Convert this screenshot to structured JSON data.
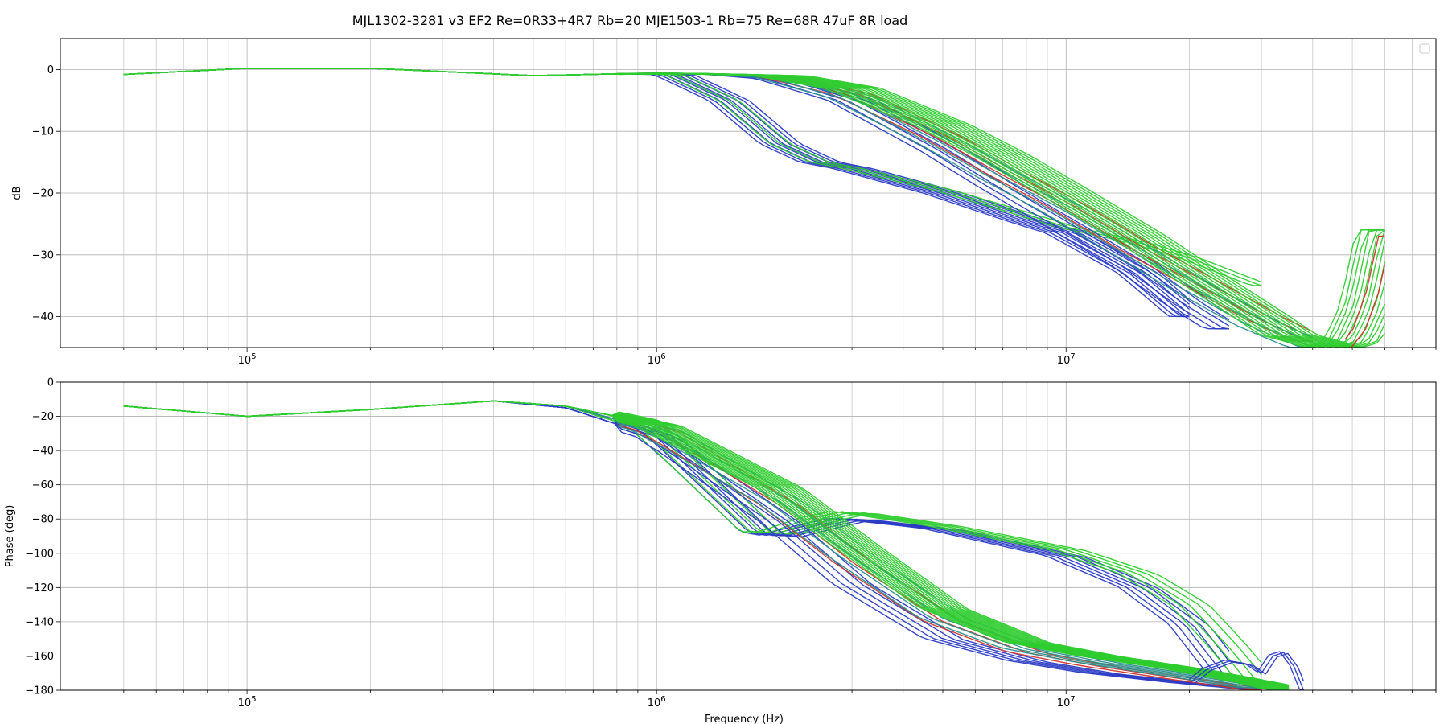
{
  "figure": {
    "title": "MJL1302-3281 v3 EF2 Re=0R33+4R7 Rb=20 MJE1503-1 Rb=75 Re=68R 47uF 8R load"
  },
  "colors": {
    "blue": "#2b3bc4",
    "red": "#d0342c",
    "green": "#2ecc2e",
    "teal": "#2b8f8c"
  },
  "chart_data": [
    {
      "type": "line",
      "name": "magnitude",
      "title": "",
      "xlabel": "",
      "ylabel": "dB",
      "xscale": "log",
      "xlim": [
        35000,
        80000000
      ],
      "ylim": [
        -45,
        5
      ],
      "grid": true,
      "legend": "top-right, empty",
      "x_ticks": [
        {
          "v": 100000,
          "b": "10",
          "e": "5"
        },
        {
          "v": 1000000,
          "b": "10",
          "e": "6"
        },
        {
          "v": 10000000,
          "b": "10",
          "e": "7"
        }
      ],
      "y_ticks": [
        0,
        -10,
        -20,
        -30,
        -40
      ],
      "series_families": [
        {
          "color": "blue",
          "count": 8,
          "spread": 0.1,
          "x": [
            50000,
            100000,
            200000,
            500000,
            800000,
            1100000,
            1500000,
            2000000,
            2500000,
            3000000,
            5000000,
            8000000,
            10000000,
            15000000,
            20000000
          ],
          "y": [
            -0.8,
            0.2,
            0.2,
            -1.0,
            -0.7,
            -0.8,
            -5.0,
            -12.0,
            -15.0,
            -16.0,
            -20.0,
            -24.5,
            -26.5,
            -33.0,
            -40.0
          ]
        },
        {
          "color": "green",
          "count": 3,
          "spread": 0.05,
          "x": [
            50000,
            100000,
            200000,
            500000,
            800000,
            1100000,
            1500000,
            2000000,
            2500000,
            3000000,
            5000000,
            8000000,
            10000000,
            15000000,
            20000000,
            30000000
          ],
          "y": [
            -0.8,
            0.2,
            0.2,
            -1.0,
            -0.7,
            -0.8,
            -5.0,
            -12.0,
            -15.0,
            -16.0,
            -19.5,
            -23.5,
            -25.5,
            -28.0,
            -30.5,
            -35.0
          ]
        },
        {
          "color": "blue",
          "count": 6,
          "spread": 0.12,
          "x": [
            50000,
            100000,
            200000,
            500000,
            800000,
            1100000,
            1500000,
            2000000,
            3000000,
            5000000,
            7000000,
            10000000,
            15000000,
            20000000,
            25000000
          ],
          "y": [
            -0.8,
            0.2,
            0.2,
            -1.0,
            -0.7,
            -0.6,
            -0.8,
            -1.5,
            -5.0,
            -13.0,
            -19.0,
            -25.0,
            -32.0,
            -38.0,
            -42.0
          ]
        },
        {
          "color": "red",
          "count": 4,
          "spread": 0.1,
          "x": [
            50000,
            100000,
            200000,
            500000,
            800000,
            1100000,
            1500000,
            2000000,
            3000000,
            5000000,
            7000000,
            10000000,
            15000000,
            20000000,
            30000000,
            40000000
          ],
          "y": [
            -0.8,
            0.2,
            0.2,
            -1.0,
            -0.7,
            -0.6,
            -0.8,
            -1.2,
            -4.0,
            -11.0,
            -16.5,
            -22.0,
            -29.0,
            -33.5,
            -40.0,
            -44.0
          ]
        },
        {
          "color": "teal",
          "count": 5,
          "spread": 0.12,
          "x": [
            50000,
            100000,
            200000,
            500000,
            800000,
            1100000,
            1500000,
            2000000,
            3000000,
            5000000,
            7000000,
            10000000,
            15000000,
            20000000,
            30000000,
            40000000
          ],
          "y": [
            -0.8,
            0.2,
            0.2,
            -1.0,
            -0.7,
            -0.6,
            -0.8,
            -1.3,
            -4.5,
            -12.0,
            -17.5,
            -23.0,
            -30.0,
            -35.0,
            -41.5,
            -45.0
          ]
        },
        {
          "color": "green",
          "count": 14,
          "spread": 0.14,
          "x": [
            50000,
            100000,
            200000,
            500000,
            800000,
            1100000,
            1500000,
            2000000,
            3000000,
            5000000,
            7000000,
            10000000,
            15000000,
            20000000,
            30000000,
            35000000,
            40000000,
            45000000,
            50000000,
            55000000,
            60000000
          ],
          "y": [
            -0.8,
            0.2,
            0.2,
            -1.0,
            -0.7,
            -0.6,
            -0.8,
            -1.0,
            -3.0,
            -9.0,
            -14.0,
            -20.0,
            -27.0,
            -32.5,
            -40.0,
            -43.0,
            -44.0,
            -45.0,
            -44.0,
            -38.0,
            -26.0
          ]
        },
        {
          "color": "red",
          "count": 2,
          "spread": 0.03,
          "x": [
            48000000,
            52000000,
            56000000,
            60000000
          ],
          "y": [
            -45.0,
            -42.0,
            -36.0,
            -27.0
          ]
        }
      ]
    },
    {
      "type": "line",
      "name": "phase",
      "title": "",
      "xlabel": "Frequency (Hz)",
      "ylabel": "Phase (deg)",
      "xscale": "log",
      "xlim": [
        35000,
        80000000
      ],
      "ylim": [
        -180,
        0
      ],
      "grid": true,
      "x_ticks": [
        {
          "v": 100000,
          "b": "10",
          "e": "5"
        },
        {
          "v": 1000000,
          "b": "10",
          "e": "6"
        },
        {
          "v": 10000000,
          "b": "10",
          "e": "7"
        }
      ],
      "y_ticks": [
        0,
        -20,
        -40,
        -60,
        -80,
        -100,
        -120,
        -140,
        -160,
        -180
      ],
      "series_families": [
        {
          "color": "blue",
          "count": 6,
          "spread": 0.1,
          "x": [
            50000,
            100000,
            200000,
            400000,
            600000,
            1000000,
            1500000,
            1800000,
            2000000,
            2500000,
            3000000,
            5000000,
            10000000,
            15000000,
            20000000,
            25000000
          ],
          "y": [
            -14,
            -20,
            -16,
            -11,
            -14,
            -30,
            -70,
            -88,
            -90,
            -84,
            -80,
            -86,
            -102,
            -120,
            -142,
            -172
          ]
        },
        {
          "color": "green",
          "count": 5,
          "spread": 0.1,
          "x": [
            50000,
            100000,
            200000,
            400000,
            600000,
            1000000,
            1500000,
            1800000,
            2000000,
            2500000,
            3000000,
            5000000,
            10000000,
            15000000,
            20000000,
            25000000,
            30000000
          ],
          "y": [
            -14,
            -20,
            -16,
            -11,
            -14,
            -30,
            -70,
            -88,
            -88,
            -80,
            -76,
            -84,
            -98,
            -112,
            -130,
            -155,
            -178
          ]
        },
        {
          "color": "blue",
          "count": 5,
          "spread": 0.1,
          "x": [
            50000,
            100000,
            200000,
            400000,
            600000,
            1000000,
            2000000,
            3000000,
            5000000,
            8000000,
            12000000,
            20000000,
            30000000
          ],
          "y": [
            -14,
            -20,
            -16,
            -11,
            -15,
            -32,
            -82,
            -118,
            -150,
            -163,
            -170,
            -176,
            -180
          ]
        },
        {
          "color": "red",
          "count": 3,
          "spread": 0.1,
          "x": [
            50000,
            100000,
            200000,
            400000,
            600000,
            1000000,
            2000000,
            3000000,
            5000000,
            8000000,
            12000000,
            20000000,
            30000000
          ],
          "y": [
            -14,
            -20,
            -16,
            -11,
            -14,
            -28,
            -72,
            -105,
            -140,
            -158,
            -166,
            -174,
            -180
          ]
        },
        {
          "color": "teal",
          "count": 5,
          "spread": 0.12,
          "x": [
            50000,
            100000,
            200000,
            400000,
            600000,
            1000000,
            2000000,
            3000000,
            5000000,
            8000000,
            12000000,
            20000000,
            30000000
          ],
          "y": [
            -14,
            -20,
            -16,
            -11,
            -14,
            -28,
            -70,
            -102,
            -138,
            -156,
            -164,
            -172,
            -179
          ]
        },
        {
          "color": "green",
          "count": 16,
          "spread": 0.12,
          "x": [
            50000,
            100000,
            200000,
            400000,
            600000,
            1000000,
            2000000,
            3000000,
            5000000,
            8000000,
            12000000,
            20000000,
            30000000,
            35000000
          ],
          "y": [
            -14,
            -20,
            -16,
            -11,
            -14,
            -25,
            -62,
            -94,
            -132,
            -152,
            -160,
            -168,
            -176,
            -180
          ]
        },
        {
          "color": "blue",
          "count": 3,
          "spread": 0.02,
          "x": [
            20000000,
            22000000,
            25000000,
            28000000,
            30000000,
            32000000,
            34000000,
            36000000,
            38000000
          ],
          "y": [
            -176,
            -168,
            -163,
            -165,
            -170,
            -160,
            -158,
            -166,
            -180
          ]
        }
      ]
    }
  ]
}
